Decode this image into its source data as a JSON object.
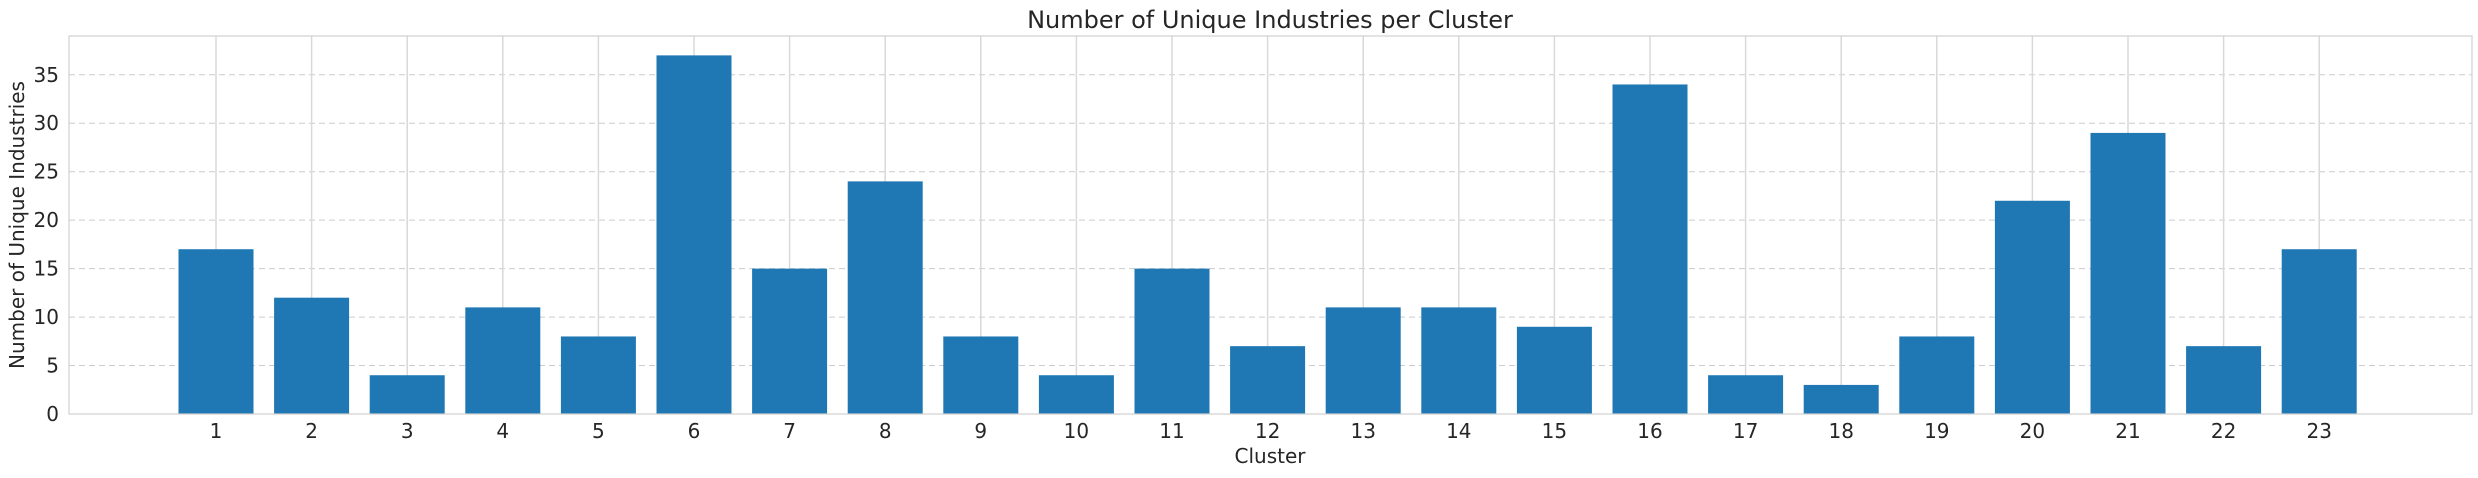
{
  "chart_data": {
    "type": "bar",
    "title": "Number of Unique Industries per Cluster",
    "xlabel": "Cluster",
    "ylabel": "Number of Unique Industries",
    "categories": [
      "1",
      "2",
      "3",
      "4",
      "5",
      "6",
      "7",
      "8",
      "9",
      "10",
      "11",
      "12",
      "13",
      "14",
      "15",
      "16",
      "17",
      "18",
      "19",
      "20",
      "21",
      "22",
      "23"
    ],
    "values": [
      17,
      12,
      4,
      11,
      8,
      37,
      15,
      24,
      8,
      4,
      15,
      7,
      11,
      11,
      9,
      34,
      4,
      3,
      8,
      22,
      29,
      7,
      17
    ],
    "ylim": [
      0,
      39
    ],
    "yticks": [
      0,
      5,
      10,
      15,
      20,
      25,
      30,
      35
    ],
    "grid": true,
    "bar_color": "#1f77b4",
    "legend": "none"
  }
}
